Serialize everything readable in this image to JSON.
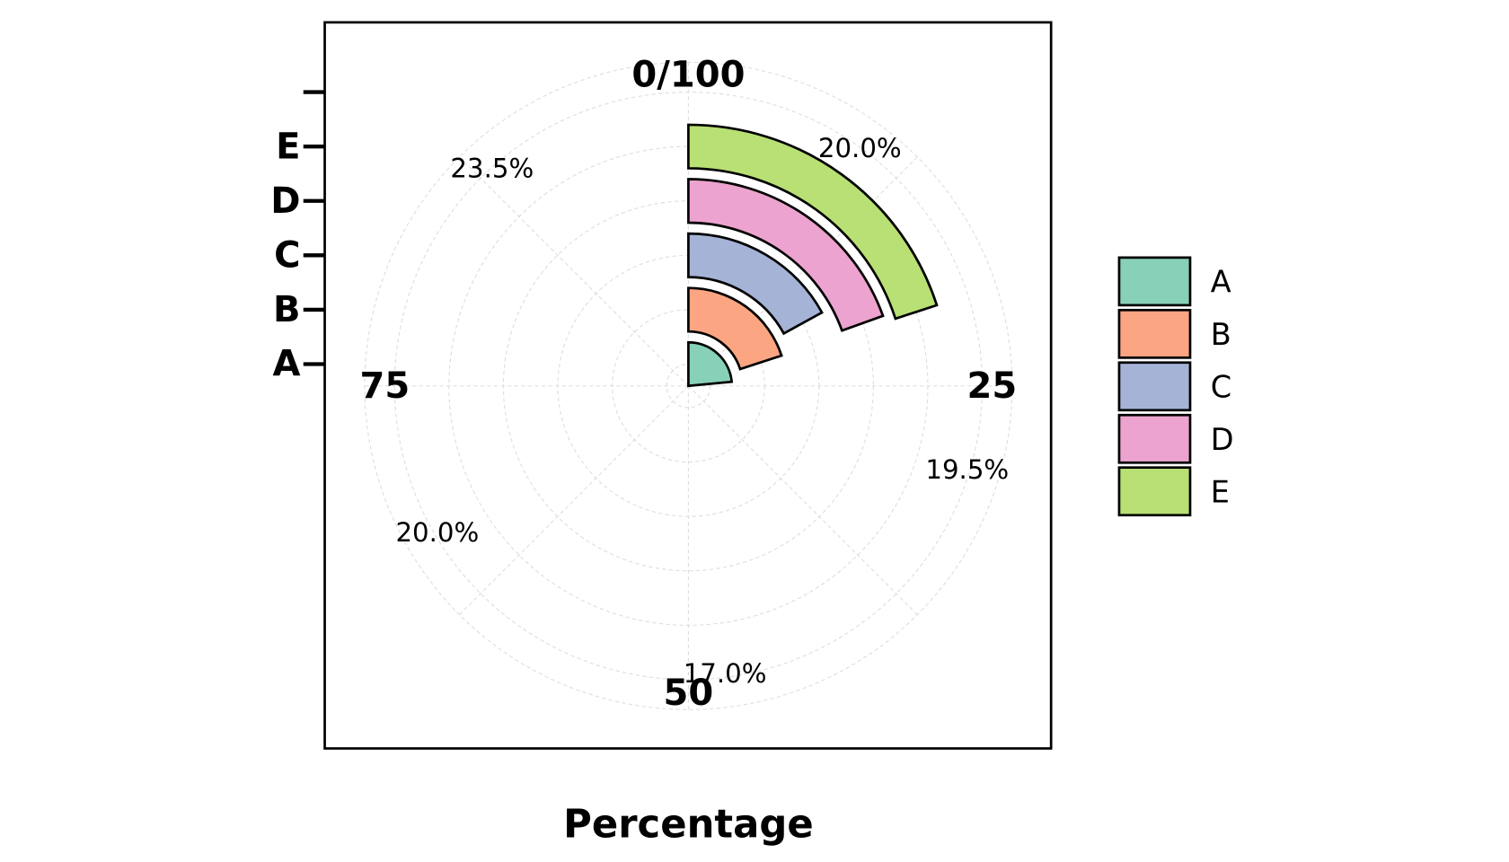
{
  "chart_data": {
    "type": "radial_bar",
    "xlabel": "Percentage",
    "categories": [
      "A",
      "B",
      "C",
      "D",
      "E"
    ],
    "values": [
      23.5,
      20.0,
      17.0,
      19.5,
      20.0
    ],
    "value_labels": [
      "23.5%",
      "20.0%",
      "17.0%",
      "19.5%",
      "20.0%"
    ],
    "colors": [
      "#88d0b8",
      "#fca582",
      "#a5b3d6",
      "#eca3cf",
      "#b8e074"
    ],
    "thetalim": [
      0,
      100
    ],
    "thetaticks": [
      {
        "value": 0,
        "label": "0/100"
      },
      25,
      50,
      75
    ],
    "rlim": [
      -0.4,
      5.55
    ],
    "rticks": [
      0,
      1,
      2,
      3,
      4,
      5
    ],
    "grid": true,
    "legend": "right"
  }
}
